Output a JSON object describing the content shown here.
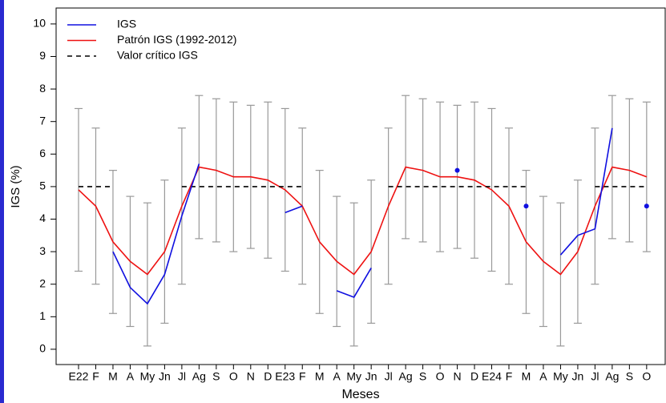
{
  "chart_data": {
    "type": "line",
    "x_label": "Meses",
    "y_label": "IGS (%)",
    "categories": [
      "E22",
      "F",
      "M",
      "A",
      "My",
      "Jn",
      "Jl",
      "Ag",
      "S",
      "O",
      "N",
      "D",
      "E23",
      "F",
      "M",
      "A",
      "My",
      "Jn",
      "Jl",
      "Ag",
      "S",
      "O",
      "N",
      "D",
      "E24",
      "F",
      "M",
      "A",
      "My",
      "Jn",
      "Jl",
      "Ag",
      "S",
      "O"
    ],
    "series": [
      {
        "name": "IGS",
        "color": "#1010e0",
        "dash": false,
        "values": [
          null,
          null,
          3.0,
          1.9,
          1.4,
          2.3,
          4.1,
          5.7,
          null,
          null,
          null,
          null,
          4.2,
          4.4,
          null,
          1.8,
          1.6,
          2.5,
          null,
          null,
          null,
          null,
          5.5,
          null,
          null,
          null,
          4.4,
          null,
          2.9,
          3.5,
          3.7,
          6.8,
          null,
          4.4
        ]
      },
      {
        "name": "Patrón IGS (1992-2012)",
        "color": "#ee1111",
        "dash": false,
        "values": [
          4.9,
          4.4,
          3.3,
          2.7,
          2.3,
          3.0,
          4.4,
          5.6,
          5.5,
          5.3,
          5.3,
          5.2,
          4.9,
          4.4,
          3.3,
          2.7,
          2.3,
          3.0,
          4.4,
          5.6,
          5.5,
          5.3,
          5.3,
          5.2,
          4.9,
          4.4,
          3.3,
          2.7,
          2.3,
          3.0,
          4.4,
          5.6,
          5.5,
          5.3
        ]
      },
      {
        "name": "Valor crítico IGS",
        "color": "#000000",
        "dash": true,
        "values": [
          5,
          5,
          5,
          null,
          null,
          null,
          5,
          5,
          5,
          5,
          5,
          5,
          5,
          5,
          null,
          null,
          null,
          null,
          5,
          5,
          5,
          5,
          5,
          5,
          5,
          5,
          5,
          null,
          null,
          null,
          5,
          5,
          5,
          5
        ]
      }
    ],
    "error_bars": {
      "color": "#999999",
      "lower": [
        2.4,
        2.0,
        1.1,
        0.7,
        0.1,
        0.8,
        2.0,
        3.4,
        3.3,
        3.0,
        3.1,
        2.8,
        2.4,
        2.0,
        1.1,
        0.7,
        0.1,
        0.8,
        2.0,
        3.4,
        3.3,
        3.0,
        3.1,
        2.8,
        2.4,
        2.0,
        1.1,
        0.7,
        0.1,
        0.8,
        2.0,
        3.4,
        3.3,
        3.0
      ],
      "upper": [
        7.4,
        6.8,
        5.5,
        4.7,
        4.5,
        5.2,
        6.8,
        7.8,
        7.7,
        7.6,
        7.5,
        7.6,
        7.4,
        6.8,
        5.5,
        4.7,
        4.5,
        5.2,
        6.8,
        7.8,
        7.7,
        7.6,
        7.5,
        7.6,
        7.4,
        6.8,
        5.5,
        4.7,
        4.5,
        5.2,
        6.8,
        7.8,
        7.7,
        7.6
      ]
    },
    "ylim": [
      -0.47,
      10.49
    ],
    "yticks": [
      0,
      1,
      2,
      3,
      4,
      5,
      6,
      7,
      8,
      9,
      10
    ],
    "legend": "top-left",
    "grid": false
  }
}
